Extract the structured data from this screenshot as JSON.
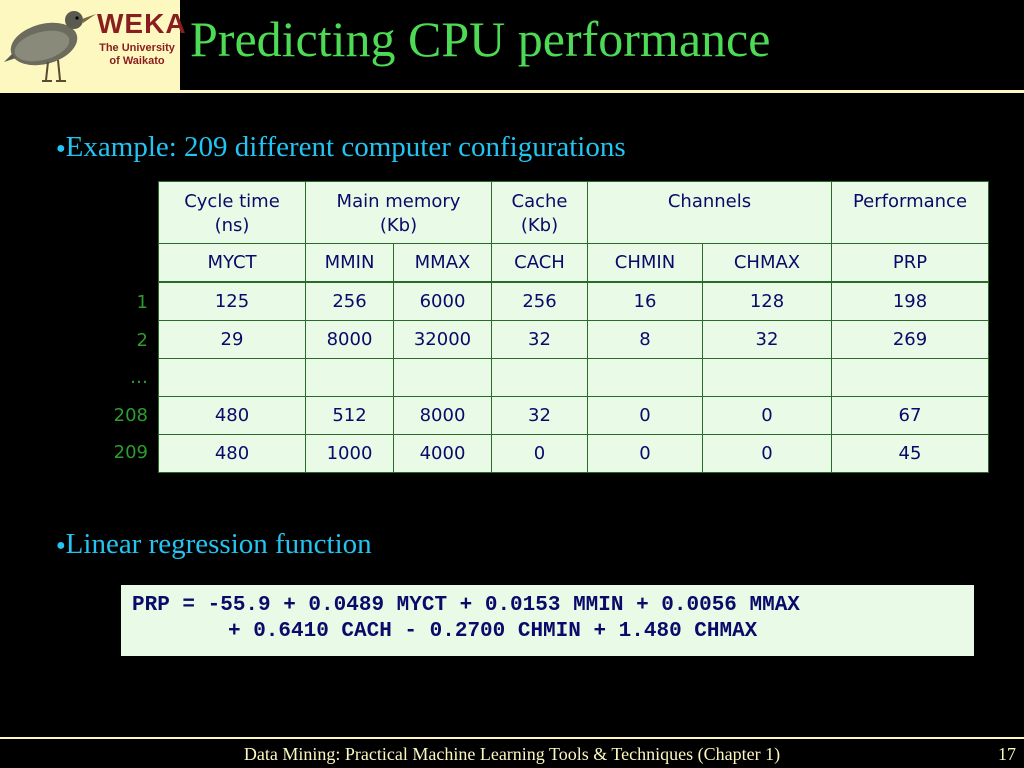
{
  "logo": {
    "brand": "WEKA",
    "institution_line1": "The University",
    "institution_line2": "of Waikato",
    "icon": "weka-bird-icon"
  },
  "slide": {
    "title": "Predicting CPU performance"
  },
  "bullets": [
    "Example: 209 different computer configurations",
    "Linear regression function"
  ],
  "table": {
    "group_headers": [
      {
        "line1": "Cycle time",
        "line2": "(ns)"
      },
      {
        "line1": "Main memory",
        "line2": "(Kb)"
      },
      {
        "line1": "Cache",
        "line2": "(Kb)"
      },
      {
        "line1": "Channels",
        "line2": ""
      },
      {
        "line1": "Performance",
        "line2": ""
      }
    ],
    "columns": [
      "MYCT",
      "MMIN",
      "MMAX",
      "CACH",
      "CHMIN",
      "CHMAX",
      "PRP"
    ],
    "row_labels": [
      "1",
      "2",
      "…",
      "208",
      "209"
    ],
    "rows": [
      [
        "125",
        "256",
        "6000",
        "256",
        "16",
        "128",
        "198"
      ],
      [
        "29",
        "8000",
        "32000",
        "32",
        "8",
        "32",
        "269"
      ],
      [
        "",
        "",
        "",
        "",
        "",
        "",
        ""
      ],
      [
        "480",
        "512",
        "8000",
        "32",
        "0",
        "0",
        "67"
      ],
      [
        "480",
        "1000",
        "4000",
        "0",
        "0",
        "0",
        "45"
      ]
    ]
  },
  "formula": {
    "line1": "PRP = -55.9 + 0.0489 MYCT + 0.0153 MMIN + 0.0056 MMAX",
    "line2": "+ 0.6410 CACH - 0.2700 CHMIN + 1.480 CHMAX"
  },
  "footer": {
    "text": "Data Mining: Practical Machine Learning Tools & Techniques (Chapter 1)",
    "page_number": "17"
  },
  "colors": {
    "title": "#4ddb55",
    "bullet": "#22c4f2",
    "accent": "#fdf7c0",
    "table_bg": "#e9fbe6"
  }
}
